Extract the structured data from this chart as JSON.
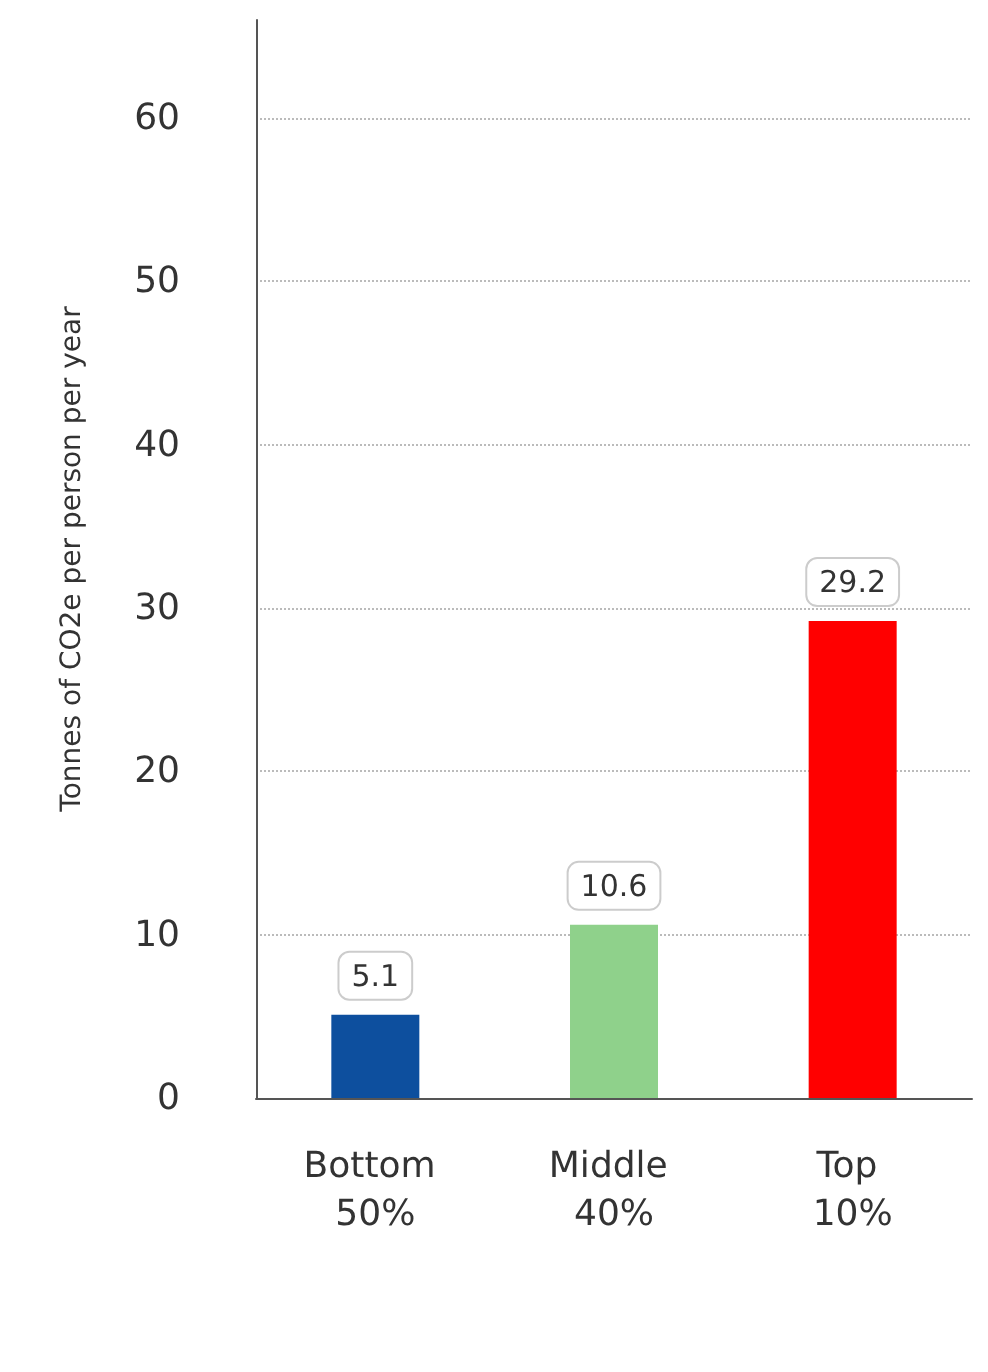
{
  "chart_data": {
    "type": "bar",
    "ylabel": "Tonnes of CO2e per person per year",
    "categories": [
      "Bottom 50%",
      "Middle 40%",
      "Top 10%"
    ],
    "values": [
      5.1,
      10.6,
      29.2
    ],
    "colors": [
      "#0d4f9e",
      "#8fd18b",
      "#ff0000"
    ],
    "ylim": [
      0,
      66
    ],
    "yticks": [
      0,
      10,
      20,
      30,
      40,
      50,
      60
    ],
    "grid": "y",
    "data_labels": true
  }
}
